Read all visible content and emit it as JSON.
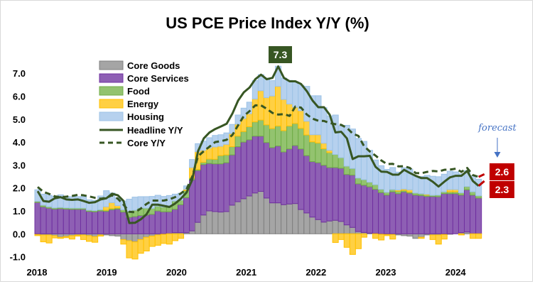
{
  "chart_data": {
    "type": "bar",
    "stacked": true,
    "title": "US PCE Price Index Y/Y (%)",
    "xlabel": "",
    "ylabel": "",
    "ylim": [
      -1.0,
      7.5
    ],
    "y_ticks": [
      "7.0",
      "6.0",
      "5.0",
      "4.0",
      "3.0",
      "2.0",
      "1.0",
      "0.0",
      "-1.0"
    ],
    "y_tick_values": [
      7,
      6,
      5,
      4,
      3,
      2,
      1,
      0,
      -1
    ],
    "x_tick_labels": [
      "2018",
      "2019",
      "2020",
      "2021",
      "2022",
      "2023",
      "2024"
    ],
    "months_per_tick": 12,
    "grid": false,
    "legend_position": "top-left",
    "colors": {
      "core_goods": "#A5A5A5",
      "core_services": "#8E5FB4",
      "food": "#93C36F",
      "energy": "#FFD043",
      "housing": "#B6D1EE",
      "headline": "#375623",
      "core": "#375623",
      "forecast": "#C00000",
      "peak_box": "#375623",
      "forecast_text": "#4472C4"
    },
    "series": [
      {
        "name": "Core Goods",
        "key": "core_goods",
        "kind": "bar",
        "values": [
          -0.03,
          -0.05,
          -0.05,
          -0.08,
          -0.15,
          -0.12,
          -0.08,
          -0.05,
          -0.05,
          -0.08,
          -0.12,
          -0.05,
          -0.05,
          -0.08,
          -0.1,
          -0.25,
          -0.3,
          -0.35,
          -0.25,
          -0.15,
          -0.1,
          -0.05,
          -0.02,
          0.0,
          0.05,
          0.05,
          0.05,
          0.13,
          0.5,
          0.82,
          1.0,
          0.97,
          0.95,
          0.97,
          1.25,
          1.4,
          1.53,
          1.65,
          1.78,
          1.85,
          1.56,
          1.35,
          1.35,
          1.27,
          1.3,
          1.32,
          1.06,
          0.91,
          0.73,
          0.62,
          0.51,
          0.56,
          0.59,
          0.54,
          0.39,
          0.28,
          0.1,
          0.06,
          0.03,
          0.02,
          -0.02,
          -0.03,
          -0.03,
          -0.05,
          -0.08,
          -0.1,
          -0.2,
          -0.15,
          -0.05,
          -0.05,
          -0.05,
          -0.03,
          -0.02,
          0.0,
          0.05,
          0.08,
          0.0,
          0.0
        ]
      },
      {
        "name": "Core Services",
        "key": "core_services",
        "kind": "bar",
        "values": [
          1.37,
          1.18,
          1.12,
          1.08,
          1.1,
          1.08,
          1.07,
          1.07,
          1.07,
          0.98,
          0.96,
          1.0,
          0.98,
          1.05,
          1.08,
          0.95,
          0.72,
          0.75,
          0.8,
          0.82,
          0.85,
          1.0,
          0.96,
          0.96,
          1.02,
          1.22,
          1.53,
          2.22,
          2.26,
          2.2,
          2.07,
          2.08,
          2.1,
          2.13,
          2.19,
          2.4,
          2.47,
          2.45,
          2.48,
          2.41,
          2.42,
          2.41,
          2.48,
          2.3,
          2.4,
          2.53,
          2.64,
          2.5,
          2.42,
          2.48,
          2.48,
          2.33,
          2.3,
          2.32,
          2.2,
          2.28,
          2.08,
          2.06,
          2.02,
          1.92,
          1.8,
          1.69,
          1.83,
          1.75,
          1.83,
          1.77,
          1.69,
          1.67,
          1.63,
          1.63,
          1.62,
          1.75,
          1.75,
          1.75,
          1.64,
          1.84,
          1.69,
          1.56
        ]
      },
      {
        "name": "Food",
        "key": "food",
        "kind": "bar",
        "values": [
          0.05,
          0.07,
          0.06,
          0.05,
          0.05,
          0.05,
          0.05,
          0.05,
          0.05,
          0.05,
          0.05,
          0.05,
          0.05,
          0.05,
          0.05,
          0.1,
          0.24,
          0.28,
          0.32,
          0.3,
          0.26,
          0.21,
          0.21,
          0.26,
          0.36,
          0.2,
          0.31,
          0.08,
          0.05,
          0.1,
          0.19,
          0.2,
          0.36,
          0.34,
          0.36,
          0.46,
          0.46,
          0.57,
          0.62,
          0.7,
          0.77,
          0.83,
          0.87,
          0.93,
          1.0,
          0.96,
          0.9,
          0.9,
          0.86,
          0.86,
          0.72,
          0.65,
          0.57,
          0.46,
          0.36,
          0.29,
          0.25,
          0.24,
          0.2,
          0.2,
          0.14,
          0.12,
          0.1,
          0.11,
          0.07,
          0.05,
          0.09,
          0.08,
          0.06,
          0.05,
          0.07,
          0.08,
          0.08,
          0.08,
          0.1,
          0.14,
          0.14,
          0.1
        ]
      },
      {
        "name": "Energy",
        "key": "energy",
        "kind": "bar",
        "values": [
          -0.05,
          -0.3,
          -0.35,
          -0.1,
          -0.05,
          -0.05,
          -0.15,
          -0.05,
          -0.2,
          -0.25,
          -0.25,
          -0.05,
          0.15,
          0.26,
          0.1,
          -0.2,
          -0.75,
          -0.75,
          -0.6,
          -0.6,
          -0.45,
          -0.45,
          -0.4,
          -0.45,
          -0.3,
          -0.2,
          0.05,
          0.46,
          0.77,
          0.52,
          0.48,
          0.54,
          0.41,
          0.46,
          0.57,
          0.52,
          0.57,
          0.57,
          1.0,
          1.28,
          1.19,
          1.42,
          1.73,
          1.36,
          0.96,
          0.71,
          0.77,
          0.6,
          0.31,
          0.36,
          0.24,
          0.1,
          -0.38,
          -0.25,
          -0.59,
          -0.9,
          -0.65,
          -0.15,
          0.0,
          -0.2,
          -0.25,
          -0.05,
          -0.2,
          0.05,
          0.05,
          0.1,
          0.0,
          -0.05,
          0.03,
          -0.2,
          -0.4,
          -0.2,
          0.1,
          0.1,
          -0.05,
          0.0,
          -0.2,
          -0.2
        ]
      },
      {
        "name": "Housing",
        "key": "housing",
        "kind": "bar",
        "values": [
          0.5,
          0.48,
          0.5,
          0.5,
          0.55,
          0.5,
          0.5,
          0.5,
          0.5,
          0.45,
          0.45,
          0.6,
          0.7,
          0.42,
          0.34,
          0.38,
          0.55,
          0.57,
          0.5,
          0.5,
          0.52,
          0.47,
          0.46,
          0.45,
          0.3,
          0.3,
          0.15,
          0.35,
          0.35,
          0.4,
          0.45,
          0.5,
          0.5,
          0.5,
          0.4,
          0.4,
          0.45,
          0.5,
          0.8,
          0.7,
          0.85,
          0.67,
          0.88,
          0.93,
          1.03,
          1.11,
          1.11,
          1.52,
          1.7,
          1.7,
          1.55,
          1.5,
          1.72,
          1.39,
          1.78,
          1.72,
          1.73,
          1.67,
          1.39,
          1.08,
          1.03,
          1.0,
          0.96,
          0.78,
          0.93,
          0.9,
          0.72,
          0.75,
          0.83,
          0.83,
          0.8,
          0.77,
          0.8,
          0.77,
          0.83,
          0.7,
          0.7,
          0.72
        ]
      },
      {
        "name": "Headline Y/Y",
        "key": "headline",
        "kind": "line",
        "values": [
          1.86,
          1.43,
          1.4,
          1.55,
          1.6,
          1.5,
          1.48,
          1.5,
          1.43,
          1.35,
          1.38,
          1.5,
          1.55,
          1.75,
          1.68,
          1.43,
          0.47,
          0.48,
          0.63,
          0.85,
          1.27,
          1.27,
          1.22,
          1.17,
          1.32,
          1.53,
          1.8,
          2.36,
          3.6,
          4.16,
          4.42,
          4.57,
          4.68,
          4.8,
          5.24,
          5.81,
          6.17,
          6.38,
          6.74,
          6.94,
          6.74,
          6.8,
          7.3,
          6.8,
          6.65,
          6.65,
          6.53,
          6.22,
          5.81,
          5.52,
          5.52,
          5.19,
          4.42,
          4.45,
          4.16,
          3.26,
          3.38,
          3.38,
          3.4,
          2.92,
          2.71,
          2.7,
          2.58,
          2.58,
          2.79,
          2.65,
          2.53,
          2.43,
          2.43,
          2.27,
          2.06,
          2.27,
          2.46,
          2.53,
          2.53,
          2.74,
          2.3,
          2.09
        ]
      },
      {
        "name": "Core Y/Y",
        "key": "core",
        "kind": "line",
        "dashed": true,
        "values": [
          2.04,
          1.83,
          1.74,
          1.63,
          1.6,
          1.62,
          1.65,
          1.7,
          1.68,
          1.63,
          1.57,
          1.53,
          1.57,
          1.68,
          1.53,
          1.27,
          0.96,
          0.94,
          1.1,
          1.3,
          1.45,
          1.45,
          1.45,
          1.5,
          1.6,
          1.76,
          1.95,
          2.5,
          3.38,
          3.6,
          3.8,
          4.0,
          4.04,
          4.1,
          4.31,
          4.73,
          5.14,
          5.35,
          5.6,
          5.6,
          5.45,
          5.27,
          5.2,
          5.22,
          5.14,
          5.55,
          5.5,
          5.2,
          5.02,
          4.93,
          4.92,
          4.83,
          4.78,
          4.75,
          4.62,
          4.37,
          4.27,
          3.82,
          3.59,
          3.41,
          3.2,
          3.04,
          3.05,
          2.94,
          2.95,
          2.87,
          2.65,
          2.64,
          2.7,
          2.74,
          2.72,
          2.79,
          2.8,
          2.84,
          2.7,
          2.87,
          2.56,
          2.48
        ]
      }
    ],
    "peak_label": "7.3",
    "forecast": {
      "text": "forecast",
      "core": 2.6,
      "headline": 2.3,
      "core_label": "2.6",
      "headline_label": "2.3"
    }
  }
}
